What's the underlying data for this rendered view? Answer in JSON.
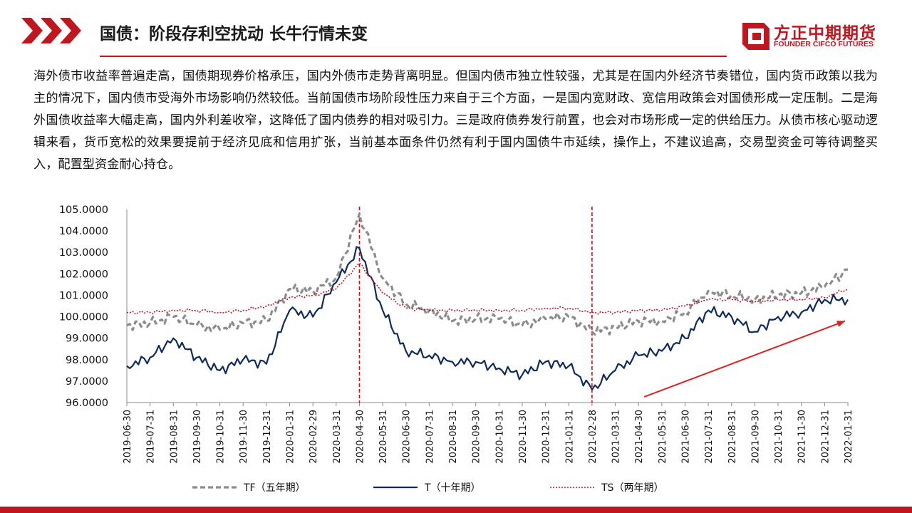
{
  "header": {
    "title": "国债：阶段存利空扰动 长牛行情未变",
    "logo_cn": "方正中期期货",
    "logo_en": "FOUNDER CIFCO FUTURES",
    "accent_color": "#c0171e"
  },
  "body_text": "海外债市收益率普遍走高，国债期现券价格承压，国内外债市走势背离明显。但国内债市独立性较强，尤其是在国内外经济节奏错位，国内货币政策以我为主的情况下，国内债市受海外市场影响仍然较低。当前国债市场阶段性压力来自于三个方面，一是国内宽财政、宽信用政策会对国债形成一定压制。二是海外国债收益率大幅走高，国内外利差收窄，这降低了国内债券的相对吸引力。三是政府债券发行前置，也会对市场形成一定的供给压力。从债市核心驱动逻辑来看，货币宽松的效果要提前于经济见底和信用扩张，当前基本面条件仍然有利于国内国债牛市延续，操作上，不建议追高，交易型资金可等待调整买入，配置型资金耐心持仓。",
  "chart_data": {
    "type": "line",
    "title": "",
    "xlabel": "",
    "ylabel": "",
    "ylim": [
      96,
      105
    ],
    "y_ticks": [
      "105.0000",
      "104.0000",
      "103.0000",
      "102.0000",
      "101.0000",
      "100.0000",
      "99.0000",
      "98.0000",
      "97.0000",
      "96.0000"
    ],
    "categories": [
      "2019-06-30",
      "2019-07-31",
      "2019-08-31",
      "2019-09-30",
      "2019-10-31",
      "2019-11-30",
      "2019-12-31",
      "2020-01-31",
      "2020-02-29",
      "2020-03-31",
      "2020-04-30",
      "2020-05-31",
      "2020-06-30",
      "2020-07-31",
      "2020-08-31",
      "2020-09-30",
      "2020-10-31",
      "2020-11-30",
      "2020-12-31",
      "2021-01-31",
      "2021-02-28",
      "2021-03-31",
      "2021-04-30",
      "2021-05-31",
      "2021-06-30",
      "2021-07-31",
      "2021-08-31",
      "2021-09-30",
      "2021-10-31",
      "2021-11-30",
      "2021-12-31",
      "2022-01-31"
    ],
    "series": [
      {
        "name": "TF（五年期）",
        "color": "#8c8c8c",
        "style": "dashed",
        "values": [
          99.6,
          99.7,
          100.0,
          99.6,
          99.4,
          99.7,
          99.8,
          101.3,
          101.2,
          101.8,
          104.8,
          101.8,
          100.6,
          100.3,
          99.8,
          99.9,
          99.9,
          99.6,
          99.9,
          100.0,
          99.3,
          99.5,
          99.8,
          99.8,
          100.2,
          101.2,
          101.0,
          100.8,
          101.0,
          101.1,
          101.4,
          102.2
        ]
      },
      {
        "name": "T（十年期）",
        "color": "#0f2b5c",
        "style": "solid",
        "values": [
          97.7,
          98.1,
          99.0,
          98.1,
          97.5,
          98.0,
          97.8,
          100.3,
          100.0,
          101.6,
          103.2,
          100.3,
          98.4,
          98.2,
          97.9,
          97.9,
          97.6,
          97.3,
          97.9,
          97.7,
          96.6,
          97.5,
          98.2,
          98.4,
          99.0,
          100.3,
          100.0,
          99.3,
          100.0,
          100.2,
          100.8,
          100.8
        ]
      },
      {
        "name": "TS（两年期）",
        "color": "#c0171e",
        "style": "dotted",
        "values": [
          100.2,
          100.2,
          100.3,
          100.3,
          100.2,
          100.3,
          100.5,
          100.9,
          101.0,
          101.3,
          102.5,
          101.1,
          100.4,
          100.3,
          100.3,
          100.3,
          100.3,
          100.3,
          100.4,
          100.4,
          100.2,
          100.2,
          100.3,
          100.3,
          100.5,
          100.8,
          100.8,
          100.7,
          100.8,
          100.8,
          100.9,
          101.3
        ]
      }
    ],
    "annotations": [
      {
        "type": "vline",
        "x": "2020-04-30",
        "color": "#c0171e"
      },
      {
        "type": "vline",
        "x": "2021-02-28",
        "color": "#c0171e"
      },
      {
        "type": "arrow",
        "from": [
          "2021-04-30",
          96.2
        ],
        "to": [
          "2022-01-31",
          99.8
        ],
        "color": "#e02020"
      }
    ],
    "legend_position": "bottom",
    "grid": false
  }
}
